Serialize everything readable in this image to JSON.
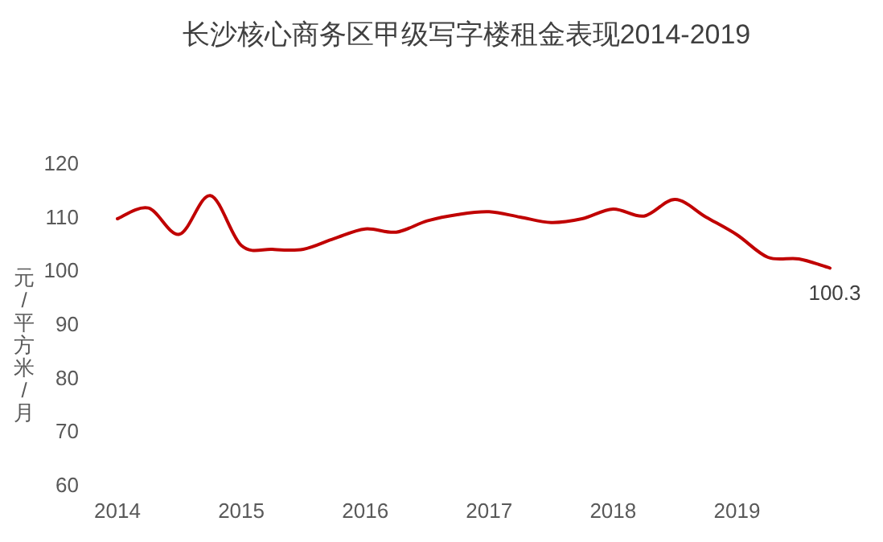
{
  "chart_data": {
    "type": "line",
    "title": "长沙核心商务区甲级写字楼租金表现2014-2019",
    "ylabel": "元/平方米/月",
    "categories": [
      "2014",
      null,
      null,
      null,
      "2015",
      null,
      null,
      null,
      "2016",
      null,
      null,
      null,
      "2017",
      null,
      null,
      null,
      "2018",
      null,
      null,
      null,
      "2019",
      null,
      null,
      null
    ],
    "series": [
      {
        "color": "#c00000",
        "values": [
          109.5,
          111.5,
          106.6,
          113.8,
          104.5,
          103.8,
          103.8,
          105.8,
          107.6,
          107,
          109.1,
          110.3,
          110.8,
          109.8,
          108.8,
          109.5,
          111.3,
          110,
          113.1,
          109.8,
          106.5,
          102.3,
          102,
          100.3
        ],
        "value_labels": [
          null,
          null,
          null,
          null,
          null,
          null,
          null,
          null,
          null,
          null,
          null,
          null,
          null,
          null,
          null,
          null,
          null,
          null,
          null,
          null,
          null,
          null,
          null,
          "100.3"
        ]
      }
    ],
    "ylim": [
      60,
      120
    ],
    "yticks": [
      60,
      70,
      80,
      90,
      100,
      110,
      120
    ]
  }
}
